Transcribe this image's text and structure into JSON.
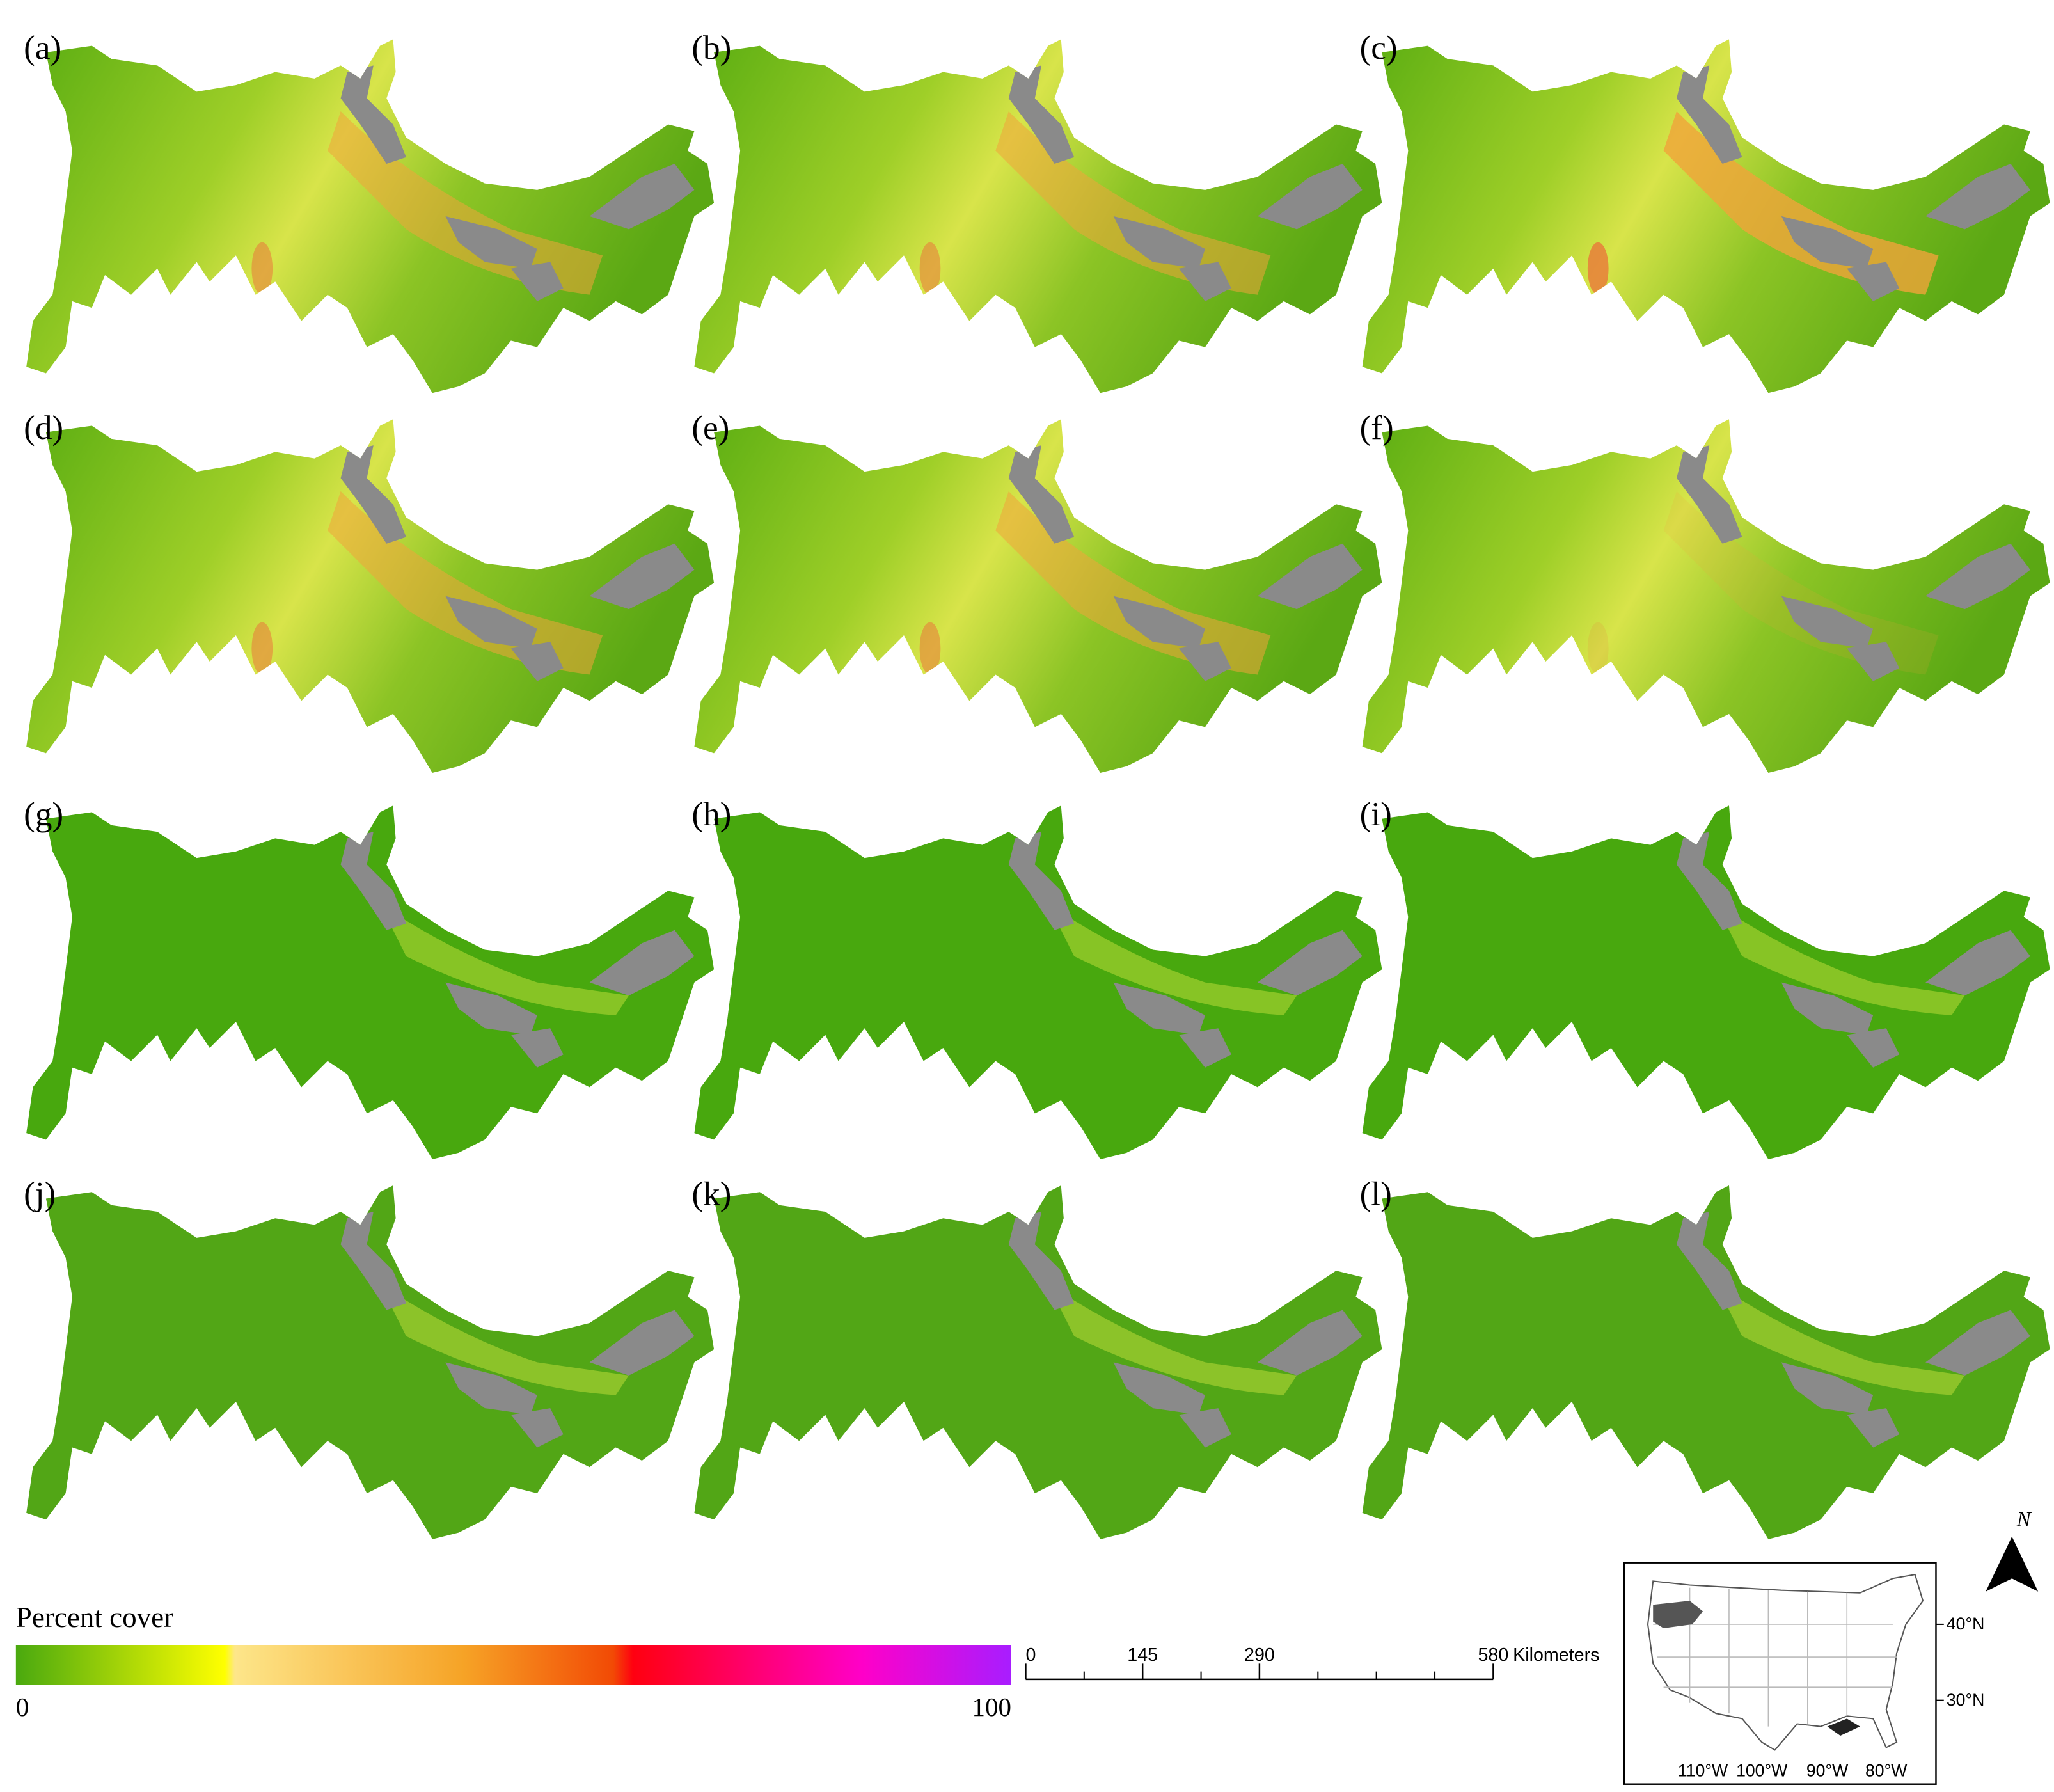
{
  "panels": [
    {
      "label": "(a)"
    },
    {
      "label": "(b)"
    },
    {
      "label": "(c)"
    },
    {
      "label": "(d)"
    },
    {
      "label": "(e)"
    },
    {
      "label": "(f)"
    },
    {
      "label": "(g)"
    },
    {
      "label": "(h)"
    },
    {
      "label": "(i)"
    },
    {
      "label": "(j)"
    },
    {
      "label": "(k)"
    },
    {
      "label": "(l)"
    }
  ],
  "legend": {
    "title": "Percent cover",
    "min": 0,
    "max": 100
  },
  "scale_bar": {
    "ticks": [
      0,
      145,
      290,
      580
    ],
    "unit": "Kilometers"
  },
  "inset": {
    "lat_labels": [
      "40°N",
      "30°N"
    ],
    "lon_labels": [
      "110°W",
      "100°W",
      "90°W",
      "80°W"
    ]
  },
  "north_arrow": {
    "label": "N"
  }
}
